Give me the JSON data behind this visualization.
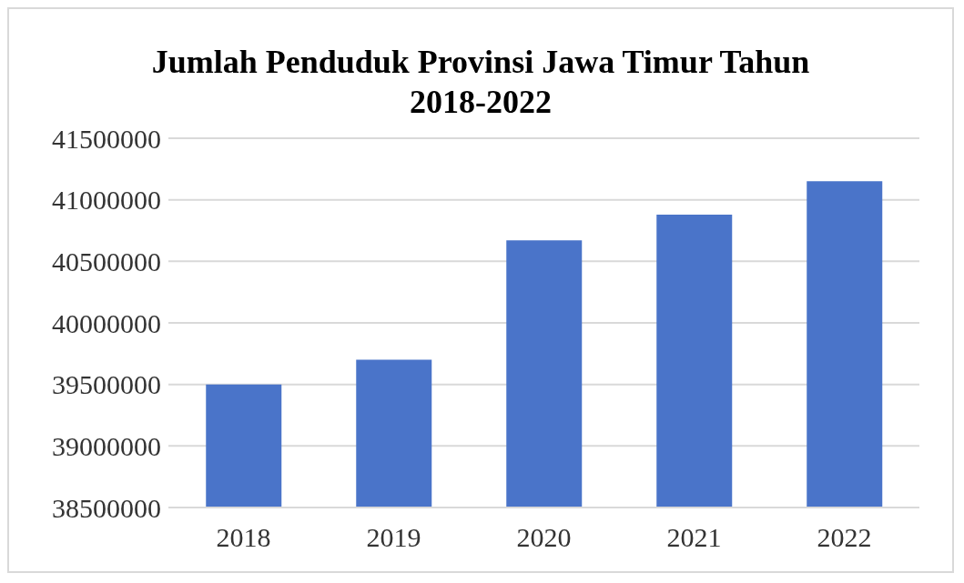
{
  "chart_data": {
    "type": "bar",
    "title": "Jumlah Penduduk Provinsi Jawa Timur Tahun 2018-2022",
    "categories": [
      "2018",
      "2019",
      "2020",
      "2021",
      "2022"
    ],
    "values": [
      39500000,
      39700000,
      40670000,
      40880000,
      41150000
    ],
    "color": "#4a74c9",
    "ylim": [
      38500000,
      41500000
    ],
    "yticks": [
      38500000,
      39000000,
      39500000,
      40000000,
      40500000,
      41000000,
      41500000
    ],
    "grid": "y"
  }
}
